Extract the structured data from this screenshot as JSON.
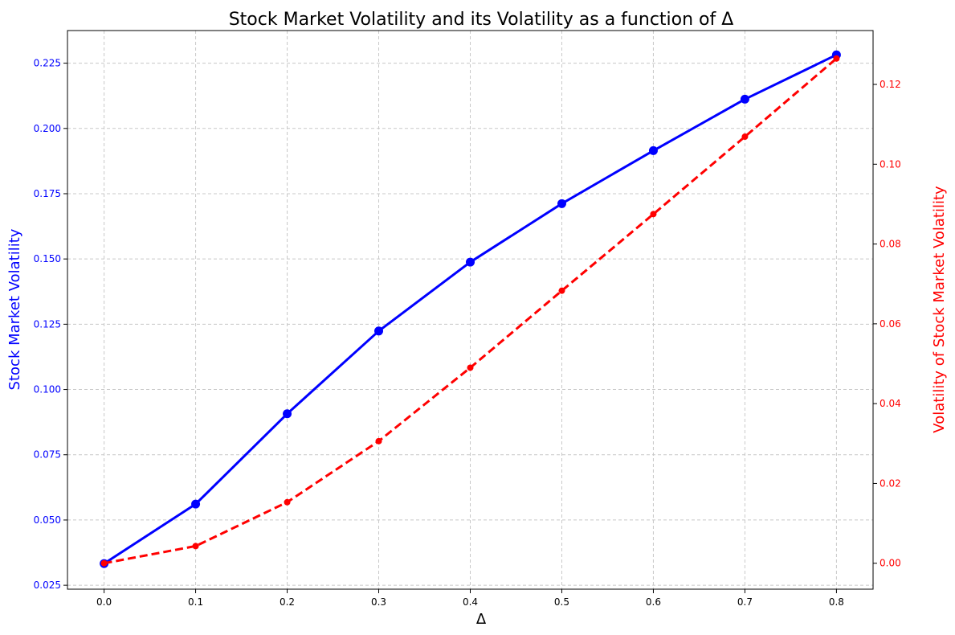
{
  "chart_data": {
    "type": "line",
    "title": "Stock Market Volatility and its Volatility as a function of Δ",
    "xlabel": "Δ",
    "ylabel_left": "Stock Market Volatility",
    "ylabel_right": "Volatility of Stock Market Volatility",
    "x": [
      0.0,
      0.1,
      0.2,
      0.3,
      0.4,
      0.5,
      0.6,
      0.7,
      0.8
    ],
    "x_ticks": [
      "0.0",
      "0.1",
      "0.2",
      "0.3",
      "0.4",
      "0.5",
      "0.6",
      "0.7",
      "0.8"
    ],
    "xlim": [
      -0.04,
      0.84
    ],
    "ylim_left": [
      0.0235,
      0.2375
    ],
    "ylim_right": [
      -0.0065,
      0.1335
    ],
    "y_left_ticks": [
      "0.025",
      "0.050",
      "0.075",
      "0.100",
      "0.125",
      "0.150",
      "0.175",
      "0.200",
      "0.225"
    ],
    "y_right_ticks": [
      "0.00",
      "0.02",
      "0.04",
      "0.06",
      "0.08",
      "0.10",
      "0.12"
    ],
    "grid": true,
    "series": [
      {
        "name": "Stock Market Volatility",
        "axis": "left",
        "color": "#0000ff",
        "line_style": "solid",
        "marker": "circle",
        "values": [
          0.0333,
          0.0561,
          0.0907,
          0.1224,
          0.1488,
          0.1712,
          0.1915,
          0.2112,
          0.2282
        ]
      },
      {
        "name": "Volatility of Stock Market Volatility",
        "axis": "right",
        "color": "#ff0000",
        "line_style": "dashed",
        "marker": "circle",
        "values": [
          0.0,
          0.0043,
          0.0153,
          0.0306,
          0.049,
          0.0683,
          0.0875,
          0.1069,
          0.1265
        ]
      }
    ]
  }
}
